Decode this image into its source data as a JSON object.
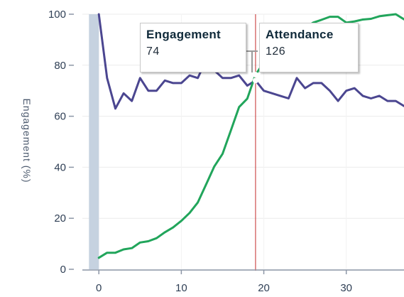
{
  "chart_data": {
    "type": "line",
    "ylabel": "Engagement (%)",
    "xlim": [
      -2,
      37
    ],
    "ylim": [
      0,
      100
    ],
    "xticks": [
      0,
      10,
      20,
      30
    ],
    "yticks": [
      0,
      20,
      40,
      60,
      80,
      100
    ],
    "grid": "horizontal",
    "hover_x": 19,
    "series": [
      {
        "name": "Engagement",
        "color": "#4b4690",
        "x": [
          0,
          1,
          2,
          3,
          4,
          5,
          6,
          7,
          8,
          9,
          10,
          11,
          12,
          13,
          14,
          15,
          16,
          17,
          18,
          19,
          20,
          21,
          22,
          23,
          24,
          25,
          26,
          27,
          28,
          29,
          30,
          31,
          32,
          33,
          34,
          35,
          36,
          37
        ],
        "values": [
          100,
          75,
          63,
          69,
          66,
          75,
          70,
          70,
          74,
          73,
          73,
          76,
          75,
          82,
          78,
          75,
          75,
          76,
          72,
          74,
          70,
          69,
          68,
          67,
          75,
          71,
          73,
          73,
          70,
          66,
          70,
          71,
          68,
          67,
          68,
          66,
          66,
          64
        ]
      },
      {
        "name": "Attendance",
        "color": "#21a55b",
        "x": [
          0,
          1,
          2,
          3,
          4,
          5,
          6,
          7,
          8,
          9,
          10,
          11,
          12,
          13,
          14,
          15,
          16,
          17,
          18,
          19,
          20,
          21,
          22,
          23,
          24,
          25,
          26,
          27,
          28,
          29,
          30,
          31,
          32,
          33,
          34,
          35,
          36,
          37
        ],
        "values": [
          4.5,
          6.5,
          6.5,
          7.8,
          8.3,
          10.5,
          11,
          12.2,
          14.5,
          16.4,
          19,
          22.1,
          26.2,
          33.2,
          40.3,
          45.3,
          54.4,
          63.6,
          66.9,
          76.3,
          81,
          84.5,
          88.1,
          90.2,
          93.5,
          94.6,
          96.7,
          97.8,
          99,
          99,
          96.7,
          97.2,
          97.9,
          98.2,
          99.2,
          99.6,
          100,
          98
        ]
      }
    ]
  },
  "tooltips": [
    {
      "name": "Engagement",
      "value": "74"
    },
    {
      "name": "Attendance",
      "value": "126"
    }
  ]
}
